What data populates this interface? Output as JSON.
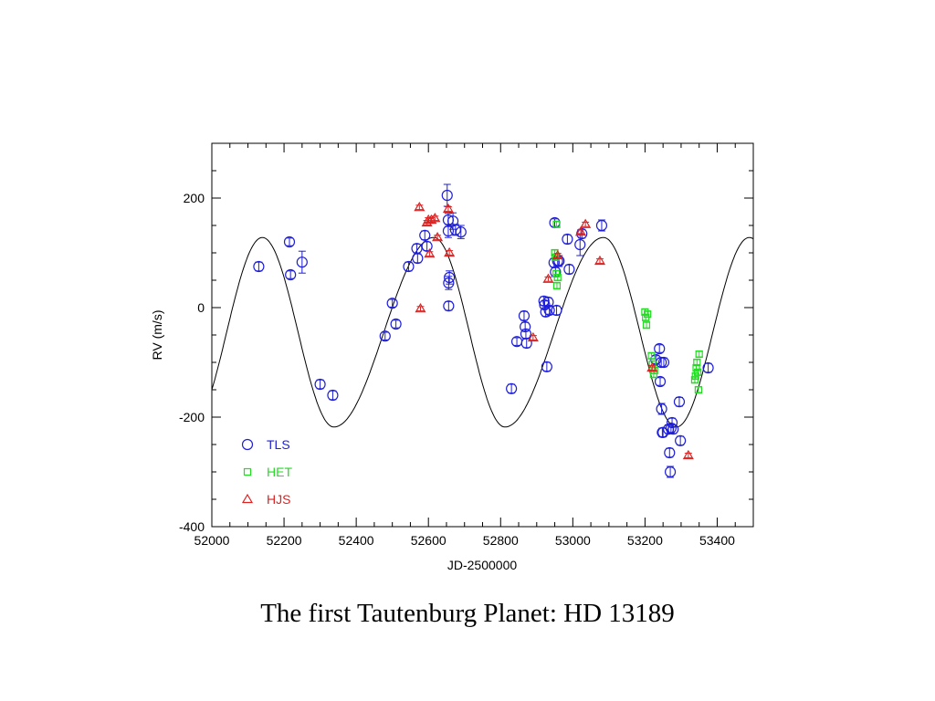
{
  "slide": {
    "caption": "The first Tautenburg Planet: HD 13189"
  },
  "chart_data": {
    "type": "scatter",
    "title": "",
    "xlabel": "JD-2500000",
    "ylabel": "RV (m/s)",
    "xlim": [
      52000,
      53500
    ],
    "ylim": [
      -400,
      300
    ],
    "xticks": [
      52000,
      52200,
      52400,
      52600,
      52800,
      53000,
      53200,
      53400
    ],
    "yticks": [
      -400,
      -200,
      0,
      200
    ],
    "grid": false,
    "legend_position": "bottom-left",
    "series": [
      {
        "name": "TLS",
        "marker": "circle",
        "color": "#1f1fd8",
        "points": [
          {
            "x": 52130,
            "y": 75,
            "err": 8
          },
          {
            "x": 52215,
            "y": 120,
            "err": 7
          },
          {
            "x": 52218,
            "y": 60,
            "err": 7
          },
          {
            "x": 52250,
            "y": 83,
            "err": 20
          },
          {
            "x": 52300,
            "y": -140,
            "err": 8
          },
          {
            "x": 52335,
            "y": -160,
            "err": 8
          },
          {
            "x": 52480,
            "y": -52,
            "err": 7
          },
          {
            "x": 52500,
            "y": 8,
            "err": 7
          },
          {
            "x": 52510,
            "y": -30,
            "err": 7
          },
          {
            "x": 52545,
            "y": 75,
            "err": 8
          },
          {
            "x": 52568,
            "y": 108,
            "err": 8
          },
          {
            "x": 52570,
            "y": 90,
            "err": 8
          },
          {
            "x": 52590,
            "y": 132,
            "err": 8
          },
          {
            "x": 52596,
            "y": 112,
            "err": 8
          },
          {
            "x": 52652,
            "y": 205,
            "err": 20
          },
          {
            "x": 52655,
            "y": 160,
            "err": 12
          },
          {
            "x": 52655,
            "y": 140,
            "err": 12
          },
          {
            "x": 52658,
            "y": 55,
            "err": 12
          },
          {
            "x": 52656,
            "y": 45,
            "err": 12
          },
          {
            "x": 52656,
            "y": 3,
            "err": 8
          },
          {
            "x": 52668,
            "y": 158,
            "err": 15
          },
          {
            "x": 52675,
            "y": 142,
            "err": 10
          },
          {
            "x": 52690,
            "y": 138,
            "err": 12
          },
          {
            "x": 52830,
            "y": -148,
            "err": 8
          },
          {
            "x": 52845,
            "y": -62,
            "err": 7
          },
          {
            "x": 52865,
            "y": -15,
            "err": 8
          },
          {
            "x": 52868,
            "y": -35,
            "err": 8
          },
          {
            "x": 52870,
            "y": -48,
            "err": 8
          },
          {
            "x": 52872,
            "y": -65,
            "err": 8
          },
          {
            "x": 52920,
            "y": 12,
            "err": 8
          },
          {
            "x": 52922,
            "y": 5,
            "err": 7
          },
          {
            "x": 52925,
            "y": -8,
            "err": 8
          },
          {
            "x": 52928,
            "y": -108,
            "err": 8
          },
          {
            "x": 52932,
            "y": 10,
            "err": 8
          },
          {
            "x": 52935,
            "y": -5,
            "err": 7
          },
          {
            "x": 52948,
            "y": 82,
            "err": 8
          },
          {
            "x": 52950,
            "y": 155,
            "err": 7
          },
          {
            "x": 52952,
            "y": 65,
            "err": 8
          },
          {
            "x": 52955,
            "y": -5,
            "err": 8
          },
          {
            "x": 52958,
            "y": 85,
            "err": 10
          },
          {
            "x": 52962,
            "y": 85,
            "err": 10
          },
          {
            "x": 52985,
            "y": 125,
            "err": 8
          },
          {
            "x": 52990,
            "y": 70,
            "err": 8
          },
          {
            "x": 53020,
            "y": 115,
            "err": 20
          },
          {
            "x": 53025,
            "y": 135,
            "err": 8
          },
          {
            "x": 53080,
            "y": 150,
            "err": 10
          },
          {
            "x": 53230,
            "y": -95,
            "err": 7
          },
          {
            "x": 53240,
            "y": -75,
            "err": 7
          },
          {
            "x": 53242,
            "y": -135,
            "err": 7
          },
          {
            "x": 53245,
            "y": -100,
            "err": 8
          },
          {
            "x": 53246,
            "y": -185,
            "err": 10
          },
          {
            "x": 53248,
            "y": -228,
            "err": 8
          },
          {
            "x": 53250,
            "y": -228,
            "err": 8
          },
          {
            "x": 53252,
            "y": -100,
            "err": 8
          },
          {
            "x": 53265,
            "y": -222,
            "err": 8
          },
          {
            "x": 53268,
            "y": -265,
            "err": 8
          },
          {
            "x": 53270,
            "y": -300,
            "err": 10
          },
          {
            "x": 53272,
            "y": -220,
            "err": 8
          },
          {
            "x": 53275,
            "y": -210,
            "err": 8
          },
          {
            "x": 53278,
            "y": -222,
            "err": 8
          },
          {
            "x": 53295,
            "y": -172,
            "err": 8
          },
          {
            "x": 53298,
            "y": -243,
            "err": 8
          },
          {
            "x": 53375,
            "y": -110,
            "err": 8
          }
        ]
      },
      {
        "name": "HET",
        "marker": "square",
        "color": "#22dd22",
        "points": [
          {
            "x": 52950,
            "y": 100,
            "err": 5
          },
          {
            "x": 52952,
            "y": 92,
            "err": 5
          },
          {
            "x": 52954,
            "y": 62,
            "err": 5
          },
          {
            "x": 52956,
            "y": 40,
            "err": 5
          },
          {
            "x": 52958,
            "y": 55,
            "err": 5
          },
          {
            "x": 52955,
            "y": 152,
            "err": 5
          },
          {
            "x": 53200,
            "y": -8,
            "err": 5
          },
          {
            "x": 53202,
            "y": -18,
            "err": 5
          },
          {
            "x": 53204,
            "y": -32,
            "err": 5
          },
          {
            "x": 53207,
            "y": -12,
            "err": 5
          },
          {
            "x": 53218,
            "y": -88,
            "err": 5
          },
          {
            "x": 53221,
            "y": -103,
            "err": 5
          },
          {
            "x": 53224,
            "y": -122,
            "err": 5
          },
          {
            "x": 53226,
            "y": -115,
            "err": 5
          },
          {
            "x": 53338,
            "y": -132,
            "err": 5
          },
          {
            "x": 53340,
            "y": -125,
            "err": 5
          },
          {
            "x": 53342,
            "y": -110,
            "err": 5
          },
          {
            "x": 53344,
            "y": -100,
            "err": 5
          },
          {
            "x": 53346,
            "y": -118,
            "err": 5
          },
          {
            "x": 53348,
            "y": -150,
            "err": 5
          },
          {
            "x": 53350,
            "y": -85,
            "err": 5
          }
        ]
      },
      {
        "name": "HJS",
        "marker": "triangle",
        "color": "#dd2222",
        "points": [
          {
            "x": 52575,
            "y": 183,
            "err": 4
          },
          {
            "x": 52578,
            "y": -2,
            "err": 4
          },
          {
            "x": 52596,
            "y": 155,
            "err": 4
          },
          {
            "x": 52600,
            "y": 160,
            "err": 4
          },
          {
            "x": 52603,
            "y": 98,
            "err": 4
          },
          {
            "x": 52608,
            "y": 160,
            "err": 4
          },
          {
            "x": 52618,
            "y": 163,
            "err": 4
          },
          {
            "x": 52625,
            "y": 128,
            "err": 4
          },
          {
            "x": 52655,
            "y": 180,
            "err": 4
          },
          {
            "x": 52658,
            "y": 100,
            "err": 4
          },
          {
            "x": 52890,
            "y": -55,
            "err": 4
          },
          {
            "x": 52932,
            "y": 52,
            "err": 4
          },
          {
            "x": 52958,
            "y": 95,
            "err": 4
          },
          {
            "x": 53022,
            "y": 138,
            "err": 4
          },
          {
            "x": 53035,
            "y": 152,
            "err": 4
          },
          {
            "x": 53075,
            "y": 85,
            "err": 4
          },
          {
            "x": 53220,
            "y": -110,
            "err": 4
          },
          {
            "x": 53320,
            "y": -270,
            "err": 4
          }
        ]
      }
    ],
    "model_curve": {
      "style": "solid black line",
      "peak_x": [
        52140,
        52615,
        53085
      ],
      "trough_x": [
        52338,
        52812,
        53287
      ],
      "max_y": 128,
      "min_y": -218
    }
  }
}
